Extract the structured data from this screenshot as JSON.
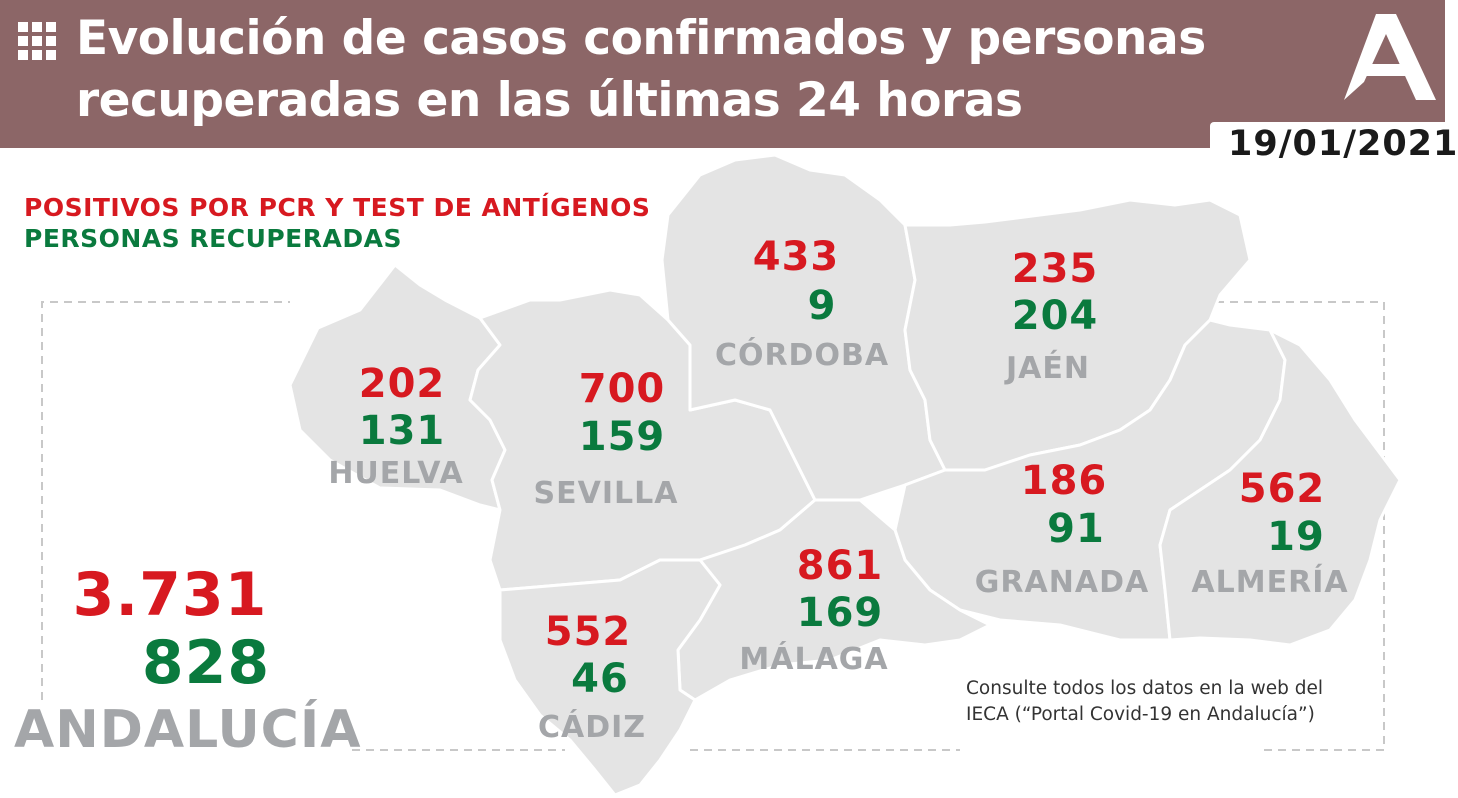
{
  "header": {
    "title_line1": "Evolución de casos confirmados y personas",
    "title_line2": "recuperadas en las últimas 24 horas",
    "date": "19/01/2021",
    "background_color": "#8c6667",
    "menu_icon": "grid-icon",
    "logo_icon": "junta-andalucia-logo-icon"
  },
  "legend": {
    "positives_label": "POSITIVOS POR PCR Y TEST DE ANTÍGENOS",
    "recovered_label": "PERSONAS RECUPERADAS",
    "positives_color": "#d71920",
    "recovered_color": "#0a7a3e"
  },
  "provinces": [
    {
      "name": "HUELVA",
      "positives": "202",
      "recovered": "131"
    },
    {
      "name": "SEVILLA",
      "positives": "700",
      "recovered": "159"
    },
    {
      "name": "CÓRDOBA",
      "positives": "433",
      "recovered": "9"
    },
    {
      "name": "JAÉN",
      "positives": "235",
      "recovered": "204"
    },
    {
      "name": "GRANADA",
      "positives": "186",
      "recovered": "91"
    },
    {
      "name": "ALMERÍA",
      "positives": "562",
      "recovered": "19"
    },
    {
      "name": "MÁLAGA",
      "positives": "861",
      "recovered": "169"
    },
    {
      "name": "CÁDIZ",
      "positives": "552",
      "recovered": "46"
    }
  ],
  "total": {
    "region": "ANDALUCÍA",
    "positives": "3.731",
    "recovered": "828"
  },
  "note": {
    "line1": "Consulte todos los datos en la web del",
    "line2": "IECA (“Portal Covid-19 en Andalucía”)"
  }
}
